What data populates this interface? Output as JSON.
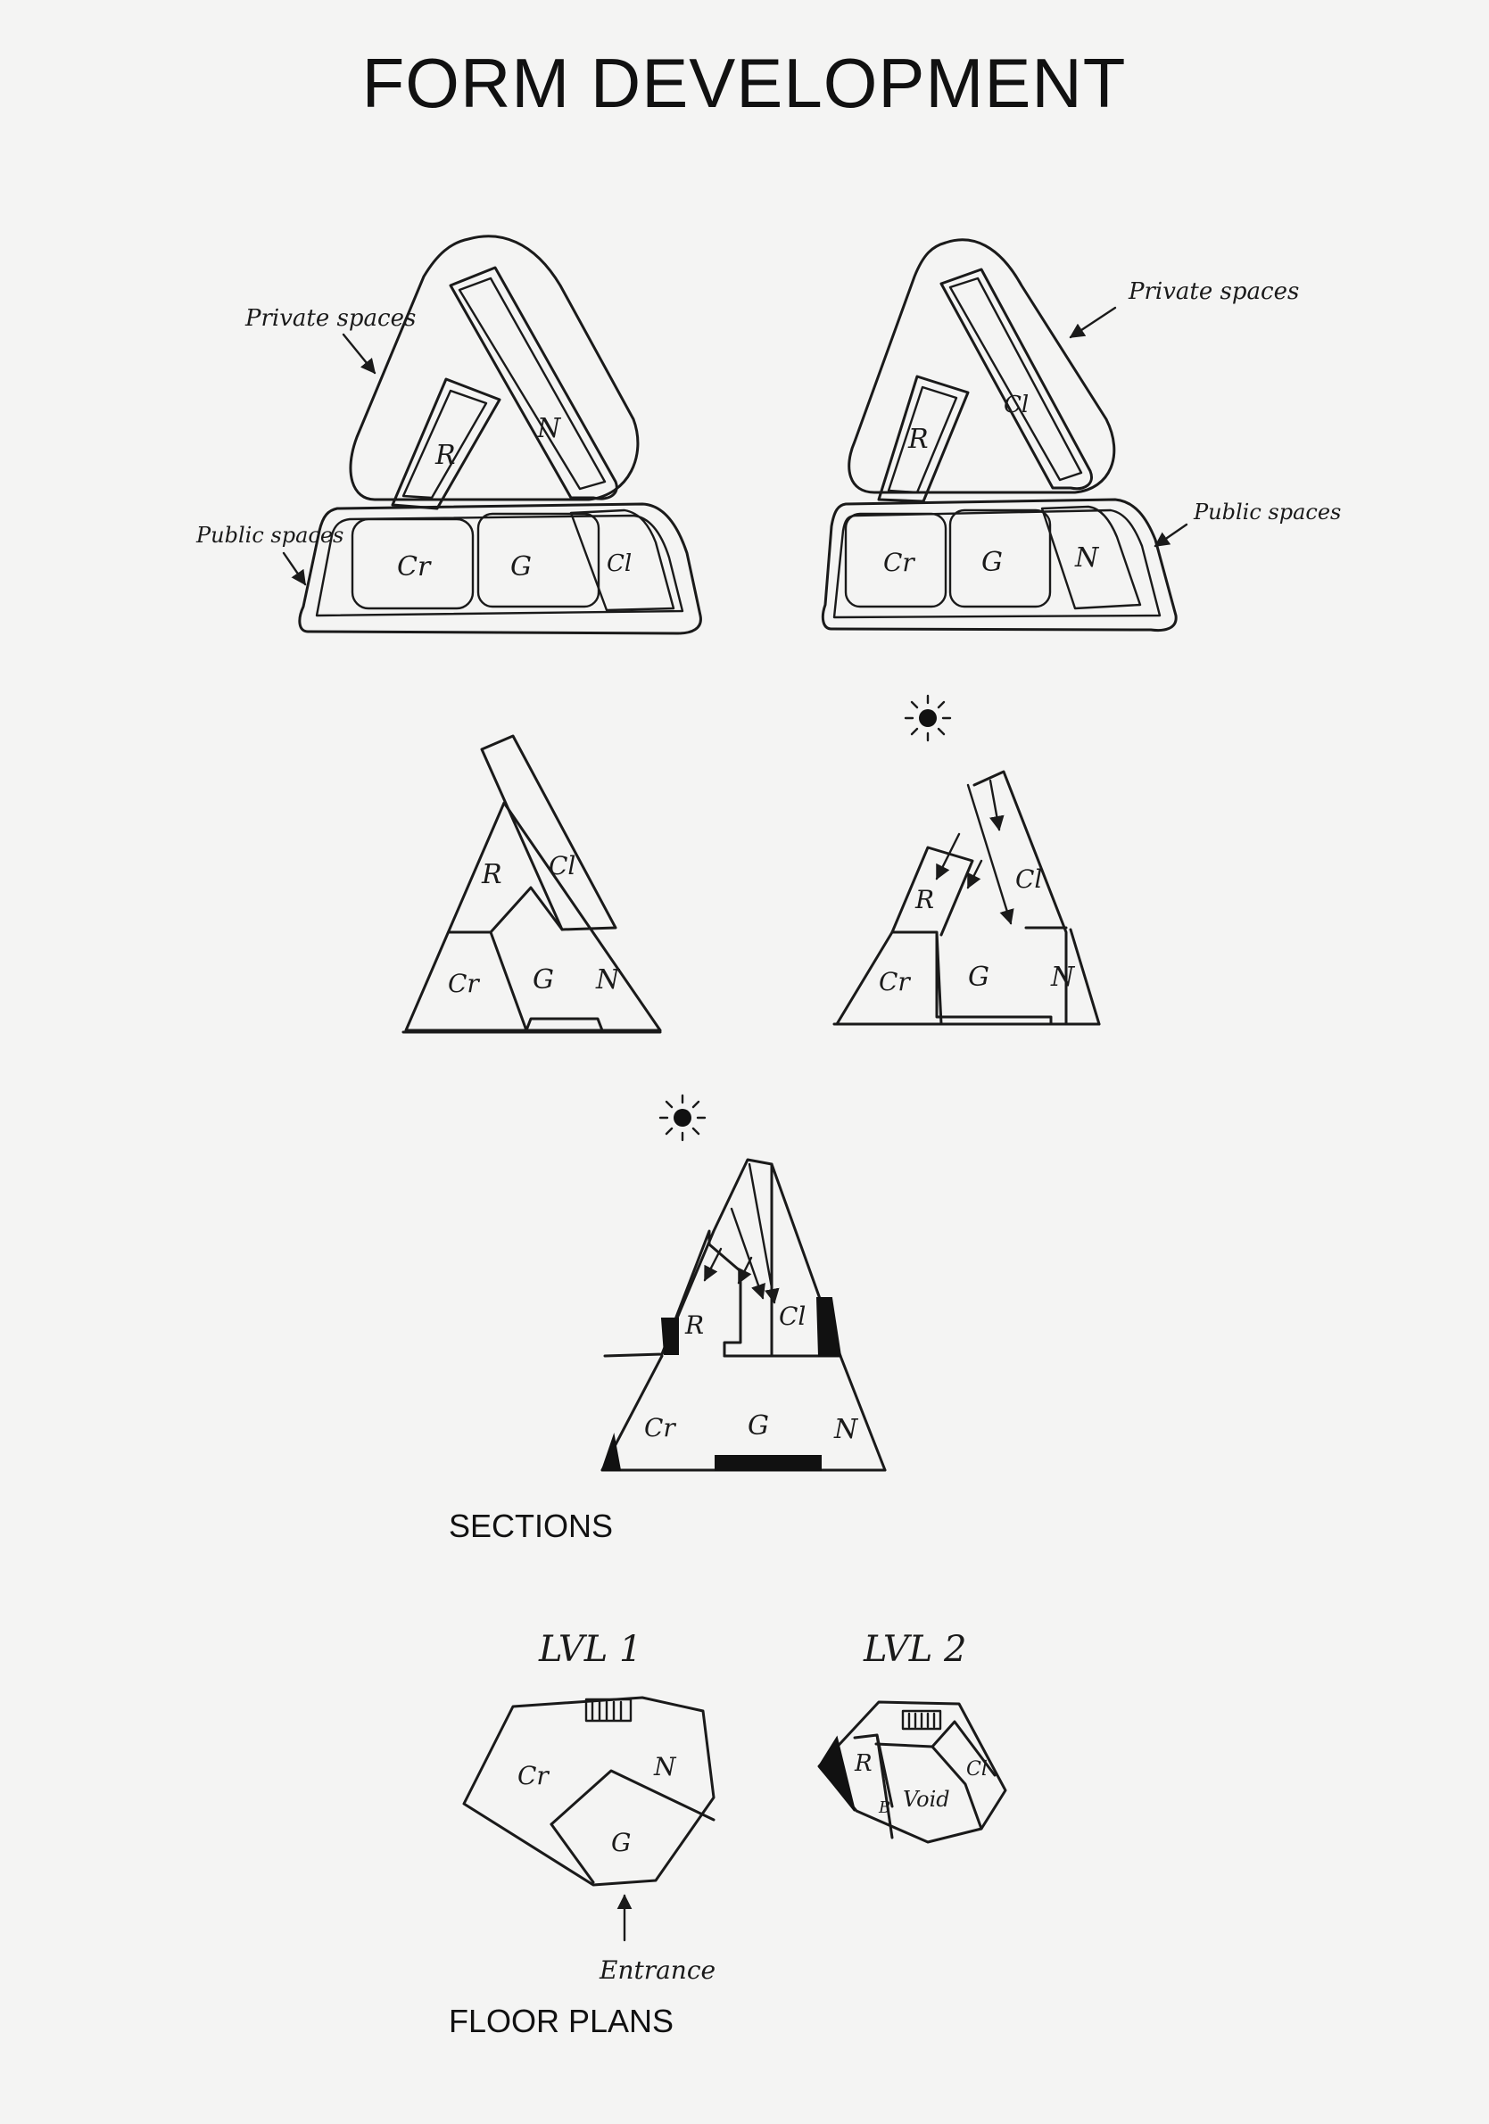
{
  "title": "FORM DEVELOPMENT",
  "annotations": {
    "private_spaces_left": "Private spaces",
    "public_spaces_left": "Public spaces",
    "private_spaces_right": "Private spaces",
    "public_spaces_right": "Public spaces",
    "entrance": "Entrance"
  },
  "room_labels": {
    "R": "R",
    "N": "N",
    "Cr": "Cr",
    "G": "G",
    "Cl": "Cl",
    "B": "B",
    "Void": "Void"
  },
  "captions": {
    "sections": "SECTIONS",
    "floor_plans": "FLOOR PLANS"
  },
  "levels": {
    "lvl1": "LVL 1",
    "lvl2": "LVL 2"
  },
  "icons": {
    "sun": "sun-icon",
    "arrow": "arrow-icon"
  },
  "colors": {
    "ink": "#1a1a1a",
    "paper": "#f4f4f3"
  }
}
